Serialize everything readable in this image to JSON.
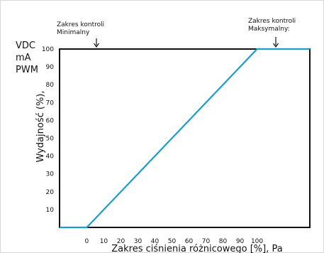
{
  "chart_data": {
    "type": "line",
    "y_units": [
      "VDC",
      "mA",
      "PWM"
    ],
    "ylabel": "Wydajność (%),",
    "xlabel": "Zakres ciśnienia różnicowego [%], Pa",
    "x_ticks": [
      "0",
      "10",
      "20",
      "30",
      "40",
      "50",
      "60",
      "70",
      "80",
      "90",
      "100"
    ],
    "y_ticks": [
      "10",
      "20",
      "30",
      "40",
      "50",
      "60",
      "70",
      "80",
      "90",
      "100"
    ],
    "xlim": [
      -16,
      131
    ],
    "ylim": [
      0,
      100
    ],
    "grid": false,
    "annotations": {
      "min": {
        "line1": "Zakres kontroli",
        "line2": "Minimalny",
        "x": 0
      },
      "max": {
        "line1": "Zakres kontroli",
        "line2": "Maksymalny:",
        "x": 100
      }
    },
    "series": [
      {
        "color": "#1a9ccc",
        "x": [
          -16,
          0,
          100,
          131
        ],
        "y": [
          0,
          0,
          100,
          100
        ]
      }
    ]
  }
}
